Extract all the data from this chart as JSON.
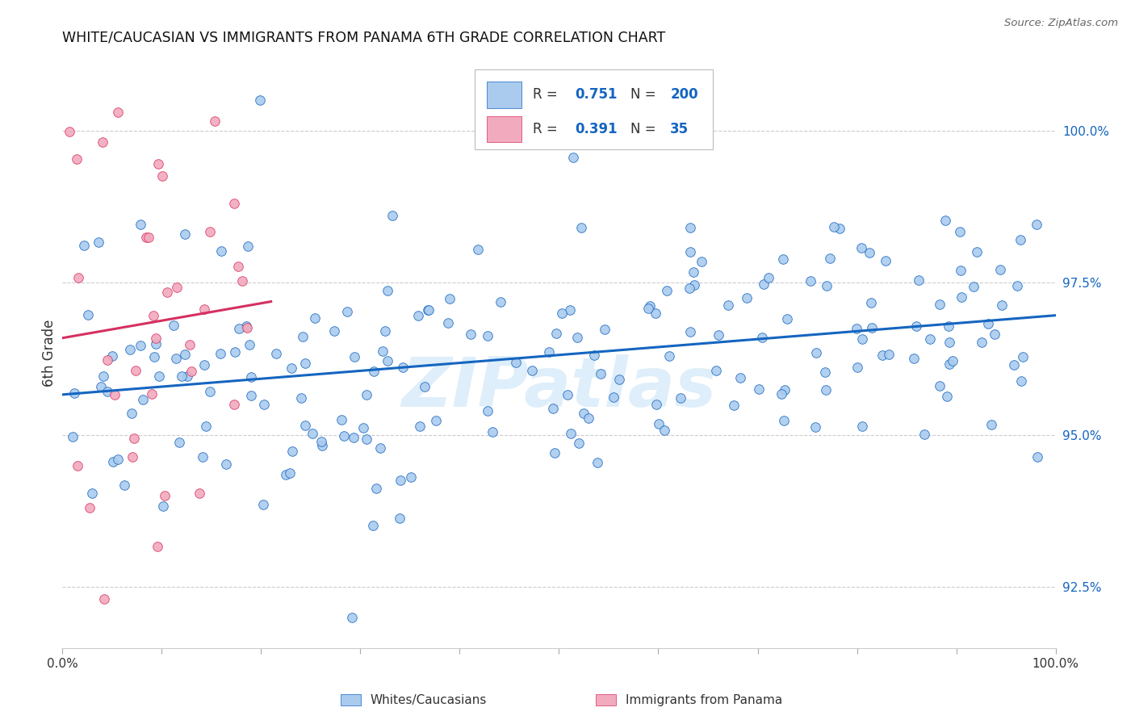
{
  "title": "WHITE/CAUCASIAN VS IMMIGRANTS FROM PANAMA 6TH GRADE CORRELATION CHART",
  "source": "Source: ZipAtlas.com",
  "ylabel": "6th Grade",
  "yticks": [
    92.5,
    95.0,
    97.5,
    100.0
  ],
  "ytick_labels": [
    "92.5%",
    "95.0%",
    "97.5%",
    "100.0%"
  ],
  "xlim": [
    0.0,
    100.0
  ],
  "ylim": [
    91.5,
    101.2
  ],
  "blue_R": 0.751,
  "blue_N": 200,
  "pink_R": 0.391,
  "pink_N": 35,
  "blue_color": "#aacbee",
  "pink_color": "#f2aabe",
  "blue_line_color": "#1565c0",
  "pink_line_color": "#d63060",
  "watermark": "ZIPatlas",
  "legend_color": "#1565c0",
  "label_color": "#333333",
  "grid_color": "#cccccc",
  "title_fontsize": 12.5,
  "tick_fontsize": 11,
  "legend_fontsize": 12,
  "bottom_legend_labels": [
    "Whites/Caucasians",
    "Immigrants from Panama"
  ]
}
